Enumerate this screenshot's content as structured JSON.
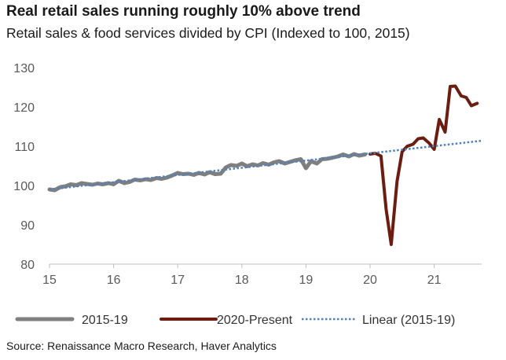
{
  "title": "Real retail sales running roughly 10% above trend",
  "subtitle": "Retail sales & food services divided by CPI (Indexed to 100, 2015)",
  "source": "Source: Renaissance Macro Research, Haver Analytics",
  "chart_data": {
    "type": "line",
    "xlim": [
      15,
      21.75
    ],
    "ylim": [
      80,
      130
    ],
    "x_ticks": [
      15,
      16,
      17,
      18,
      19,
      20,
      21
    ],
    "y_ticks": [
      80,
      90,
      100,
      110,
      120,
      130
    ],
    "grid": false,
    "legend_position": "bottom",
    "series": [
      {
        "name": "2015-19",
        "color": "#7f7f7f",
        "style": "solid",
        "x": [
          15.0,
          15.08,
          15.17,
          15.25,
          15.33,
          15.42,
          15.5,
          15.58,
          15.67,
          15.75,
          15.83,
          15.92,
          16.0,
          16.08,
          16.17,
          16.25,
          16.33,
          16.42,
          16.5,
          16.58,
          16.67,
          16.75,
          16.83,
          16.92,
          17.0,
          17.08,
          17.17,
          17.25,
          17.33,
          17.42,
          17.5,
          17.58,
          17.67,
          17.75,
          17.83,
          17.92,
          18.0,
          18.08,
          18.17,
          18.25,
          18.33,
          18.42,
          18.5,
          18.58,
          18.67,
          18.75,
          18.83,
          18.92,
          19.0,
          19.08,
          19.17,
          19.25,
          19.33,
          19.42,
          19.5,
          19.58,
          19.67,
          19.75,
          19.83,
          19.92
        ],
        "y": [
          99.0,
          98.8,
          99.6,
          99.8,
          100.3,
          100.1,
          100.6,
          100.4,
          100.2,
          100.5,
          100.3,
          100.6,
          100.3,
          101.2,
          100.6,
          100.9,
          101.5,
          101.3,
          101.6,
          101.4,
          101.9,
          101.7,
          102.0,
          102.6,
          103.2,
          102.9,
          103.0,
          102.7,
          103.2,
          102.8,
          103.4,
          102.9,
          103.0,
          104.6,
          105.2,
          105.0,
          105.6,
          104.9,
          105.4,
          105.1,
          105.7,
          105.3,
          105.9,
          106.2,
          105.6,
          106.0,
          106.4,
          106.7,
          104.4,
          106.2,
          105.6,
          106.7,
          106.8,
          107.1,
          107.4,
          107.9,
          107.4,
          108.0,
          107.6,
          107.9
        ]
      },
      {
        "name": "2020-Present",
        "color": "#6b1d12",
        "style": "solid",
        "x": [
          20.0,
          20.08,
          20.17,
          20.25,
          20.33,
          20.42,
          20.5,
          20.58,
          20.67,
          20.75,
          20.83,
          20.92,
          21.0,
          21.08,
          21.17,
          21.25,
          21.33,
          21.42,
          21.5,
          21.58,
          21.67
        ],
        "y": [
          108.0,
          108.2,
          107.5,
          94.0,
          85.0,
          101.0,
          108.6,
          110.0,
          110.5,
          111.9,
          112.1,
          110.8,
          109.2,
          116.8,
          113.6,
          125.2,
          125.3,
          122.8,
          122.4,
          120.3,
          120.9
        ]
      },
      {
        "name": "Linear (2015-19)",
        "color": "#4f81bd",
        "style": "dotted",
        "x": [
          15.0,
          21.75
        ],
        "y": [
          99.0,
          111.4
        ]
      }
    ]
  }
}
